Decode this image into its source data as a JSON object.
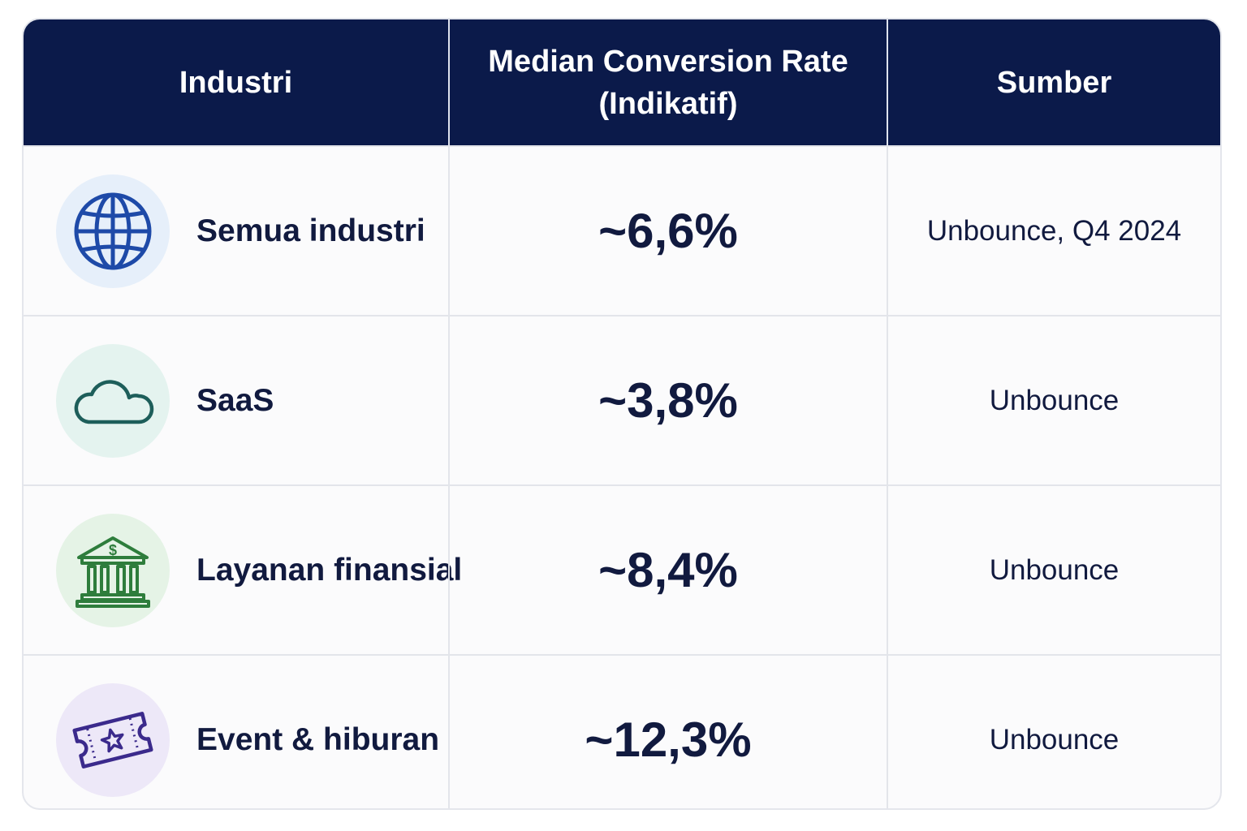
{
  "header": {
    "col1": "Industri",
    "col2_line1": "Median Conversion Rate",
    "col2_line2": "(Indikatif)",
    "col3": "Sumber"
  },
  "rows": [
    {
      "industry": "Semua industri",
      "icon": "globe-icon",
      "icon_color": "#1e4aa8",
      "icon_bg": "#e6effa",
      "rate": "~6,6%",
      "source": "Unbounce, Q4 2024"
    },
    {
      "industry": "SaaS",
      "icon": "cloud-icon",
      "icon_color": "#1d5e5a",
      "icon_bg": "#e4f3ef",
      "rate": "~3,8%",
      "source": "Unbounce"
    },
    {
      "industry": "Layanan finansial",
      "icon": "bank-icon",
      "icon_color": "#2e7d3c",
      "icon_bg": "#e5f3e6",
      "icon_text": "$",
      "rate": "~8,4%",
      "source": "Unbounce"
    },
    {
      "industry": "Event & hiburan",
      "icon": "ticket-icon",
      "icon_color": "#3b2a8c",
      "icon_bg": "#ede8f8",
      "rate": "~12,3%",
      "source": "Unbounce"
    }
  ],
  "colors": {
    "header_bg": "#0b1a4a",
    "text": "#111a3f"
  }
}
